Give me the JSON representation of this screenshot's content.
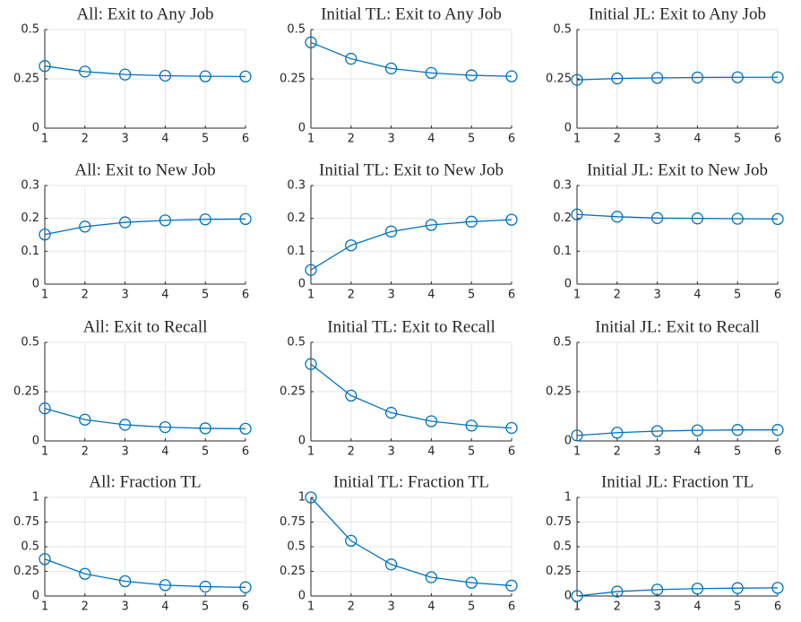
{
  "chart_data": [
    {
      "type": "line",
      "title": "All: Exit to Any Job",
      "x": [
        1,
        2,
        3,
        4,
        5,
        6
      ],
      "series": [
        {
          "color": "#0072bd",
          "values": [
            0.315,
            0.287,
            0.272,
            0.266,
            0.263,
            0.262
          ]
        }
      ],
      "xlim": [
        1,
        6
      ],
      "xticks": [
        1,
        2,
        3,
        4,
        5,
        6
      ],
      "ylim": [
        0,
        0.5
      ],
      "yticks": [
        0,
        0.25,
        0.5
      ],
      "grid": true
    },
    {
      "type": "line",
      "title": "Initial TL: Exit to Any Job",
      "x": [
        1,
        2,
        3,
        4,
        5,
        6
      ],
      "series": [
        {
          "color": "#0072bd",
          "values": [
            0.435,
            0.352,
            0.303,
            0.28,
            0.268,
            0.263
          ]
        }
      ],
      "xlim": [
        1,
        6
      ],
      "xticks": [
        1,
        2,
        3,
        4,
        5,
        6
      ],
      "ylim": [
        0,
        0.5
      ],
      "yticks": [
        0,
        0.25,
        0.5
      ],
      "grid": true
    },
    {
      "type": "line",
      "title": "Initial JL: Exit to Any Job",
      "x": [
        1,
        2,
        3,
        4,
        5,
        6
      ],
      "series": [
        {
          "color": "#0072bd",
          "values": [
            0.245,
            0.252,
            0.255,
            0.257,
            0.258,
            0.258
          ]
        }
      ],
      "xlim": [
        1,
        6
      ],
      "xticks": [
        1,
        2,
        3,
        4,
        5,
        6
      ],
      "ylim": [
        0,
        0.5
      ],
      "yticks": [
        0,
        0.25,
        0.5
      ],
      "grid": true
    },
    {
      "type": "line",
      "title": "All: Exit to New Job",
      "x": [
        1,
        2,
        3,
        4,
        5,
        6
      ],
      "series": [
        {
          "color": "#0072bd",
          "values": [
            0.151,
            0.175,
            0.188,
            0.194,
            0.197,
            0.198
          ]
        }
      ],
      "xlim": [
        1,
        6
      ],
      "xticks": [
        1,
        2,
        3,
        4,
        5,
        6
      ],
      "ylim": [
        0,
        0.3
      ],
      "yticks": [
        0,
        0.1,
        0.2,
        0.3
      ],
      "grid": true
    },
    {
      "type": "line",
      "title": "Initial TL: Exit to New Job",
      "x": [
        1,
        2,
        3,
        4,
        5,
        6
      ],
      "series": [
        {
          "color": "#0072bd",
          "values": [
            0.043,
            0.118,
            0.16,
            0.18,
            0.19,
            0.196
          ]
        }
      ],
      "xlim": [
        1,
        6
      ],
      "xticks": [
        1,
        2,
        3,
        4,
        5,
        6
      ],
      "ylim": [
        0,
        0.3
      ],
      "yticks": [
        0,
        0.1,
        0.2,
        0.3
      ],
      "grid": true
    },
    {
      "type": "line",
      "title": "Initial JL: Exit to New Job",
      "x": [
        1,
        2,
        3,
        4,
        5,
        6
      ],
      "series": [
        {
          "color": "#0072bd",
          "values": [
            0.212,
            0.205,
            0.201,
            0.2,
            0.199,
            0.198
          ]
        }
      ],
      "xlim": [
        1,
        6
      ],
      "xticks": [
        1,
        2,
        3,
        4,
        5,
        6
      ],
      "ylim": [
        0,
        0.3
      ],
      "yticks": [
        0,
        0.1,
        0.2,
        0.3
      ],
      "grid": true
    },
    {
      "type": "line",
      "title": "All: Exit to Recall",
      "x": [
        1,
        2,
        3,
        4,
        5,
        6
      ],
      "series": [
        {
          "color": "#0072bd",
          "values": [
            0.165,
            0.108,
            0.082,
            0.07,
            0.064,
            0.062
          ]
        }
      ],
      "xlim": [
        1,
        6
      ],
      "xticks": [
        1,
        2,
        3,
        4,
        5,
        6
      ],
      "ylim": [
        0,
        0.5
      ],
      "yticks": [
        0,
        0.25,
        0.5
      ],
      "grid": true
    },
    {
      "type": "line",
      "title": "Initial TL: Exit to Recall",
      "x": [
        1,
        2,
        3,
        4,
        5,
        6
      ],
      "series": [
        {
          "color": "#0072bd",
          "values": [
            0.39,
            0.23,
            0.143,
            0.1,
            0.078,
            0.066
          ]
        }
      ],
      "xlim": [
        1,
        6
      ],
      "xticks": [
        1,
        2,
        3,
        4,
        5,
        6
      ],
      "ylim": [
        0,
        0.5
      ],
      "yticks": [
        0,
        0.25,
        0.5
      ],
      "grid": true
    },
    {
      "type": "line",
      "title": "Initial JL: Exit to Recall",
      "x": [
        1,
        2,
        3,
        4,
        5,
        6
      ],
      "series": [
        {
          "color": "#0072bd",
          "values": [
            0.028,
            0.042,
            0.05,
            0.054,
            0.056,
            0.056
          ]
        }
      ],
      "xlim": [
        1,
        6
      ],
      "xticks": [
        1,
        2,
        3,
        4,
        5,
        6
      ],
      "ylim": [
        0,
        0.5
      ],
      "yticks": [
        0,
        0.25,
        0.5
      ],
      "grid": true
    },
    {
      "type": "line",
      "title": "All: Fraction TL",
      "x": [
        1,
        2,
        3,
        4,
        5,
        6
      ],
      "series": [
        {
          "color": "#0072bd",
          "values": [
            0.375,
            0.225,
            0.15,
            0.11,
            0.095,
            0.088
          ]
        }
      ],
      "xlim": [
        1,
        6
      ],
      "xticks": [
        1,
        2,
        3,
        4,
        5,
        6
      ],
      "ylim": [
        0,
        1
      ],
      "yticks": [
        0,
        0.25,
        0.5,
        0.75,
        1
      ],
      "grid": true
    },
    {
      "type": "line",
      "title": "Initial TL: Fraction TL",
      "x": [
        1,
        2,
        3,
        4,
        5,
        6
      ],
      "series": [
        {
          "color": "#0072bd",
          "values": [
            1,
            0.56,
            0.32,
            0.19,
            0.135,
            0.105
          ]
        }
      ],
      "xlim": [
        1,
        6
      ],
      "xticks": [
        1,
        2,
        3,
        4,
        5,
        6
      ],
      "ylim": [
        0,
        1
      ],
      "yticks": [
        0,
        0.25,
        0.5,
        0.75,
        1
      ],
      "grid": true
    },
    {
      "type": "line",
      "title": "Initial JL: Fraction TL",
      "x": [
        1,
        2,
        3,
        4,
        5,
        6
      ],
      "series": [
        {
          "color": "#0072bd",
          "values": [
            0,
            0.045,
            0.065,
            0.075,
            0.08,
            0.083
          ]
        }
      ],
      "xlim": [
        1,
        6
      ],
      "xticks": [
        1,
        2,
        3,
        4,
        5,
        6
      ],
      "ylim": [
        0,
        1
      ],
      "yticks": [
        0,
        0.25,
        0.5,
        0.75,
        1
      ],
      "grid": true
    }
  ]
}
